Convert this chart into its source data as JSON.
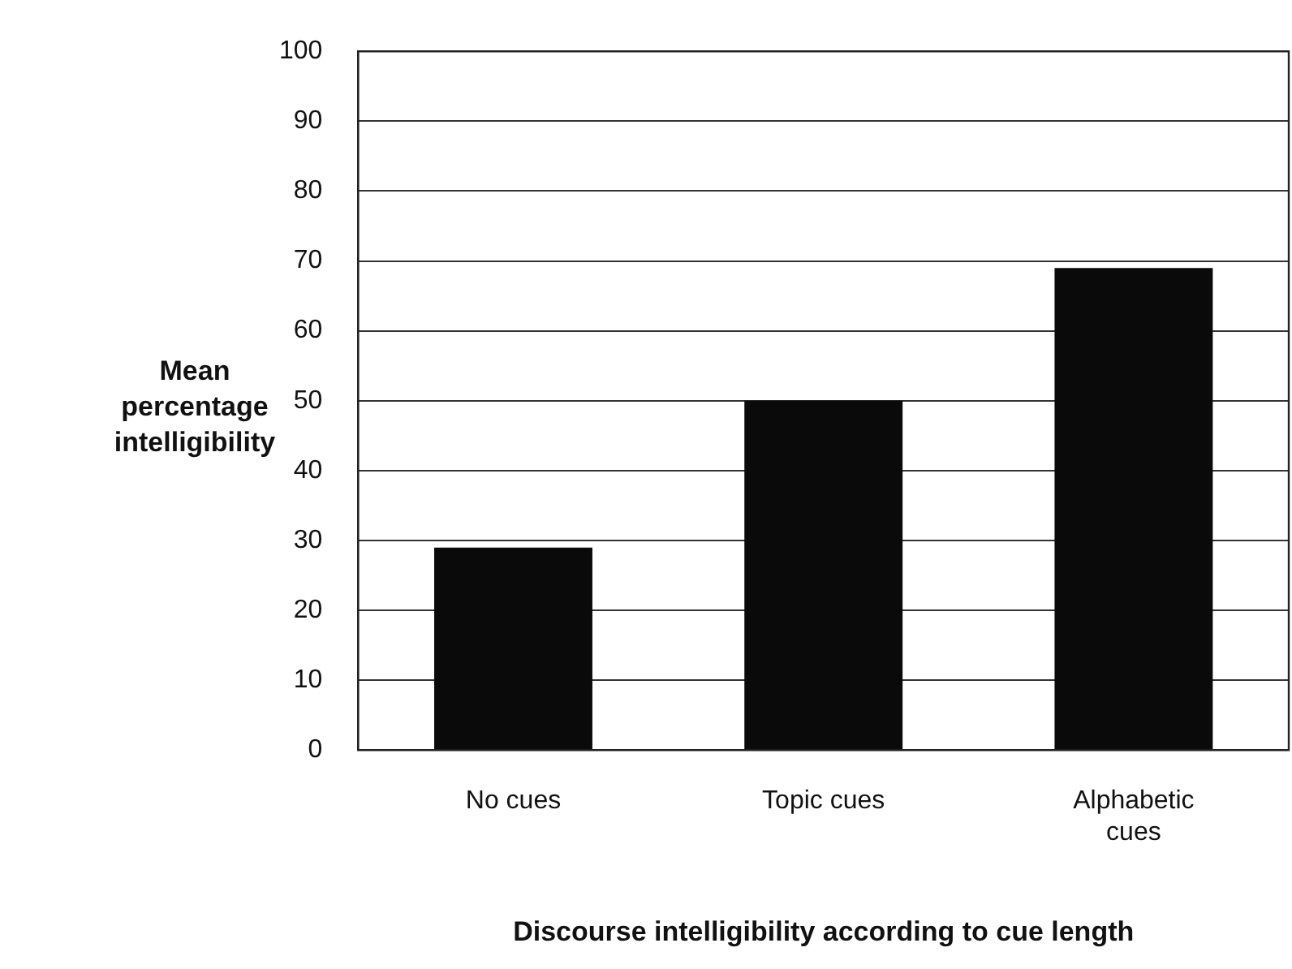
{
  "chart_data": {
    "type": "bar",
    "xlabel": "Discourse intelligibility according to cue length",
    "ylabel": "Mean percentage intelligibility",
    "categories": [
      "No cues",
      "Topic cues",
      "Alphabetic cues"
    ],
    "values": [
      29,
      50,
      69
    ],
    "color": "#0a0a0a",
    "ylim": [
      0,
      100
    ],
    "yticks": [
      0,
      10,
      20,
      30,
      40,
      50,
      60,
      70,
      80,
      90,
      100
    ],
    "grid": "y"
  }
}
